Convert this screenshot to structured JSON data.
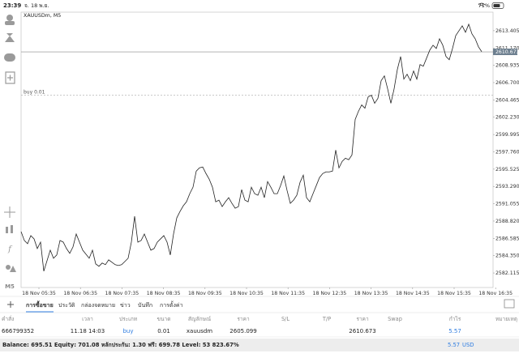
{
  "status_bar": {
    "time": "23:39",
    "date": "จ. 18 พ.ย.",
    "battery": "71%"
  },
  "toolbar": {
    "timeframe": "M5"
  },
  "chart_data": {
    "type": "line",
    "title": "XAUUSDm, M5",
    "color": "#222222",
    "x": [
      0,
      1,
      2,
      3,
      4,
      5,
      6,
      7,
      8,
      9,
      10,
      11,
      12,
      13,
      14,
      15,
      16,
      17,
      18,
      19,
      20,
      21,
      22,
      23,
      24,
      25,
      26,
      27,
      28,
      29,
      30,
      31,
      32,
      33,
      34,
      35,
      36,
      37,
      38,
      39,
      40,
      41,
      42,
      43,
      44,
      45,
      46,
      47,
      48,
      49,
      50,
      51,
      52,
      53,
      54,
      55,
      56,
      57,
      58,
      59,
      60,
      61,
      62,
      63,
      64,
      65,
      66,
      67,
      68,
      69,
      70,
      71,
      72,
      73,
      74,
      75,
      76,
      77,
      78,
      79,
      80,
      81,
      82,
      83,
      84,
      85,
      86,
      87,
      88,
      89,
      90,
      91,
      92,
      93,
      94,
      95,
      96,
      97,
      98,
      99,
      100,
      101,
      102,
      103,
      104,
      105,
      106,
      107,
      108,
      109,
      110,
      111,
      112,
      113,
      114,
      115,
      116,
      117,
      118,
      119,
      120,
      121,
      122,
      123,
      124,
      125,
      126,
      127,
      128,
      129,
      130,
      131,
      132,
      133,
      134,
      135,
      136,
      137,
      138,
      139,
      140,
      141,
      142
    ],
    "values": [
      2587.46,
      2586.31,
      2585.9,
      2586.94,
      2586.52,
      2585.27,
      2586.1,
      2582.35,
      2583.71,
      2585.06,
      2584.02,
      2584.44,
      2586.31,
      2586.1,
      2585.27,
      2584.65,
      2585.48,
      2587.15,
      2586.1,
      2585.06,
      2584.54,
      2584.02,
      2585.06,
      2583.29,
      2582.98,
      2583.4,
      2583.19,
      2583.81,
      2583.5,
      2583.19,
      2583.08,
      2583.19,
      2583.6,
      2584.02,
      2586.1,
      2589.44,
      2586.1,
      2586.31,
      2587.15,
      2586.1,
      2585.06,
      2585.27,
      2586.1,
      2586.52,
      2586.94,
      2586.1,
      2584.44,
      2587.15,
      2589.23,
      2590.06,
      2590.79,
      2591.31,
      2592.36,
      2593.19,
      2595.27,
      2595.69,
      2595.8,
      2594.96,
      2594.23,
      2593.19,
      2591.31,
      2591.52,
      2590.69,
      2591.31,
      2591.84,
      2591.11,
      2590.48,
      2590.69,
      2592.88,
      2591.52,
      2591.31,
      2593.19,
      2592.36,
      2592.15,
      2593.19,
      2591.84,
      2593.92,
      2593.19,
      2592.36,
      2592.36,
      2593.4,
      2594.65,
      2592.77,
      2591.11,
      2591.52,
      2592.15,
      2593.82,
      2594.75,
      2591.84,
      2591.31,
      2592.36,
      2593.4,
      2594.44,
      2594.96,
      2595.17,
      2595.17,
      2595.27,
      2597.99,
      2595.69,
      2596.53,
      2596.94,
      2596.74,
      2597.36,
      2601.95,
      2602.99,
      2603.82,
      2603.4,
      2604.86,
      2605.07,
      2604.03,
      2604.66,
      2606.95,
      2607.57,
      2605.9,
      2604.03,
      2605.9,
      2608.4,
      2610.07,
      2607.15,
      2607.78,
      2606.95,
      2608.2,
      2607.15,
      2609.03,
      2608.82,
      2609.86,
      2610.9,
      2611.53,
      2611.11,
      2612.36,
      2611.53,
      2610.07,
      2609.66,
      2611.11,
      2612.78,
      2613.4,
      2614.03,
      2613.2,
      2614.24,
      2612.99,
      2612.36,
      2611.32,
      2610.7
    ],
    "xlim": [
      0,
      145.5
    ],
    "xticks": [
      {
        "value": 5.5,
        "label": "18 Nov 05:35"
      },
      {
        "value": 18.3,
        "label": "18 Nov 06:35"
      },
      {
        "value": 31.1,
        "label": "18 Nov 07:35"
      },
      {
        "value": 43.9,
        "label": "18 Nov 08:35"
      },
      {
        "value": 56.7,
        "label": "18 Nov 09:35"
      },
      {
        "value": 69.5,
        "label": "18 Nov 10:35"
      },
      {
        "value": 82.3,
        "label": "18 Nov 11:35"
      },
      {
        "value": 95.1,
        "label": "18 Nov 12:35"
      },
      {
        "value": 107.9,
        "label": "18 Nov 13:35"
      },
      {
        "value": 120.7,
        "label": "18 Nov 14:35"
      },
      {
        "value": 133.5,
        "label": "18 Nov 15:35"
      },
      {
        "value": 146.3,
        "label": "18 Nov 16:35"
      }
    ],
    "ylim": [
      2580.24,
      2615.8
    ],
    "yticks": [
      2613.405,
      {
        "value": 2611.17,
        "label": "2611.170"
      },
      2608.935,
      {
        "value": 2606.7,
        "label": "2606.700"
      },
      2604.465,
      {
        "value": 2602.23,
        "label": "2602.230"
      },
      2599.995,
      {
        "value": 2597.76,
        "label": "2597.760"
      },
      2595.525,
      {
        "value": 2593.29,
        "label": "2593.290"
      },
      2591.055,
      {
        "value": 2588.82,
        "label": "2588.820"
      },
      2586.585,
      {
        "value": 2584.35,
        "label": "2584.350"
      },
      2582.115
    ],
    "bid": 2610.673,
    "buy_line": {
      "label": "buy 0.01",
      "price": 2605.099
    }
  },
  "tabs": [
    "การซื้อขาย",
    "ประวัติ",
    "กล่องจดหมาย",
    "ข่าว",
    "บันทึก",
    "การตั้งค่า"
  ],
  "table": {
    "header": [
      "คำสั่ง",
      "เวลา",
      "ประเภท",
      "ขนาด",
      "สัญลักษณ์",
      "ราคา",
      "S/L",
      "T/P",
      "ราคา",
      "Swap",
      "กำไร",
      "หมายเหตุ"
    ],
    "rows": [
      [
        "666799352",
        "11.18 14:03",
        "buy",
        "0.01",
        "xauusdm",
        "2605.099",
        "",
        "",
        "2610.673",
        "",
        "5.57",
        ""
      ]
    ]
  },
  "summary": {
    "text": "Balance: 695.51 Equity: 701.08 หลักประกัน: 1.30 ฟรี: 699.78 Level: 53 823.67%",
    "profit": "5.57",
    "currency": "USD"
  }
}
